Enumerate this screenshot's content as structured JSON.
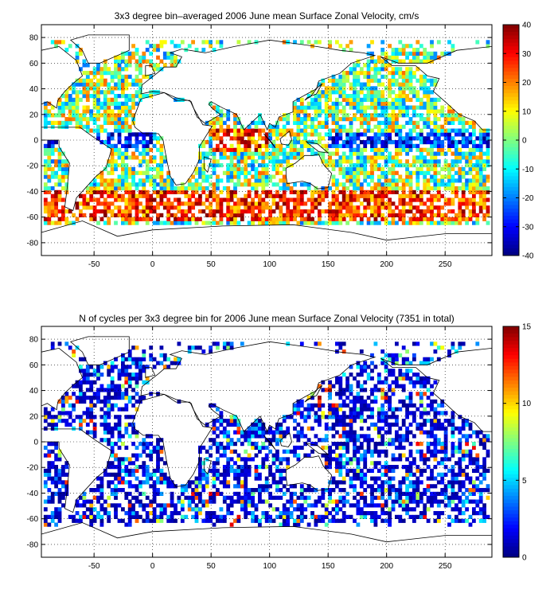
{
  "chart_data": [
    {
      "type": "heatmap",
      "title": "3x3 degree bin–averaged 2006 June mean Surface Zonal Velocity, cm/s",
      "x_ticks": [
        -50,
        0,
        50,
        100,
        150,
        200,
        250
      ],
      "y_ticks": [
        80,
        60,
        40,
        20,
        0,
        -20,
        -40,
        -60,
        -80
      ],
      "xlim": [
        -95,
        290
      ],
      "ylim": [
        -90,
        90
      ],
      "grid": true,
      "colorbar": {
        "ticks": [
          40,
          30,
          20,
          10,
          0,
          -10,
          -20,
          -30,
          -40
        ],
        "min": -40,
        "max": 40,
        "colormap": "jet"
      },
      "bin_size_deg": 3,
      "note_values": "binned values estimated: strong eastward (red) bands in Southern Ocean ~40–60S and equatorial Indian Ocean; westward (blue) bands along equatorial Pacific and Atlantic"
    },
    {
      "type": "heatmap",
      "title": "N of cycles per 3x3 degree bin for 2006 June mean Surface Zonal Velocity (7351 in total)",
      "x_ticks": [
        -50,
        0,
        50,
        100,
        150,
        200,
        250
      ],
      "y_ticks": [
        80,
        60,
        40,
        20,
        0,
        -20,
        -40,
        -60,
        -80
      ],
      "xlim": [
        -95,
        290
      ],
      "ylim": [
        -90,
        90
      ],
      "grid": true,
      "colorbar": {
        "ticks": [
          15,
          10,
          5,
          0
        ],
        "min": 0,
        "max": 15,
        "colormap": "jet"
      },
      "bin_size_deg": 3,
      "total_cycles": 7351
    }
  ]
}
